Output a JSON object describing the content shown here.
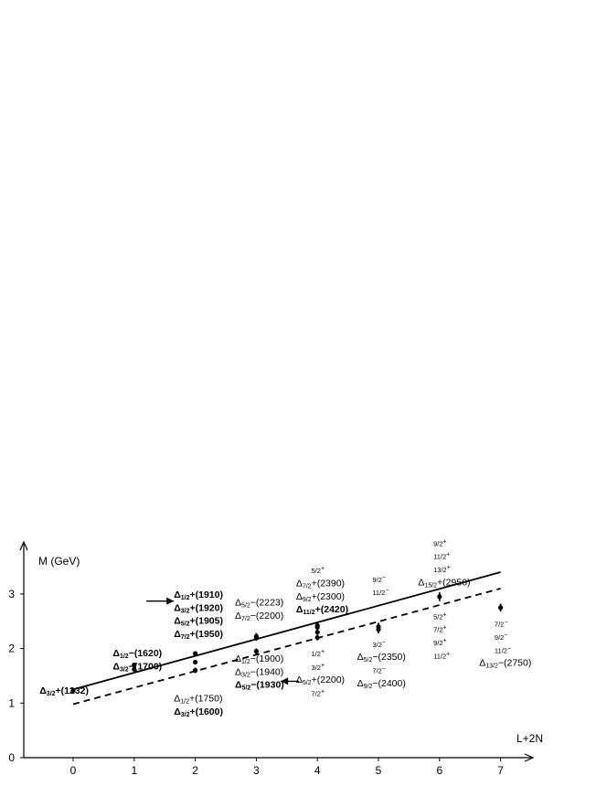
{
  "chart_data": {
    "type": "scatter",
    "xlabel": "L+2N",
    "ylabel": "M (GeV)",
    "xlim": [
      -0.8,
      7.6
    ],
    "ylim": [
      0,
      3.8
    ],
    "x_ticks": [
      "0",
      "1",
      "2",
      "3",
      "4",
      "5",
      "6",
      "7"
    ],
    "y_ticks": [
      "0",
      "1",
      "2",
      "3"
    ],
    "points": [
      {
        "x": 0,
        "y": 1.232,
        "err": 0
      },
      {
        "x": 1,
        "y": 1.62,
        "err": 0.02
      },
      {
        "x": 1,
        "y": 1.7,
        "err": 0.03
      },
      {
        "x": 2,
        "y": 1.6,
        "err": 0.05
      },
      {
        "x": 2,
        "y": 1.75,
        "err": 0.03
      },
      {
        "x": 2,
        "y": 1.91,
        "err": 0.03
      },
      {
        "x": 3,
        "y": 1.95,
        "err": 0.05
      },
      {
        "x": 3,
        "y": 2.2,
        "err": 0.06
      },
      {
        "x": 3,
        "y": 2.223,
        "err": 0.06
      },
      {
        "x": 4,
        "y": 2.2,
        "err": 0.05
      },
      {
        "x": 4,
        "y": 2.3,
        "err": 0.05
      },
      {
        "x": 4,
        "y": 2.39,
        "err": 0.05
      },
      {
        "x": 4,
        "y": 2.42,
        "err": 0.05
      },
      {
        "x": 5,
        "y": 2.35,
        "err": 0.07
      },
      {
        "x": 5,
        "y": 2.4,
        "err": 0.07
      },
      {
        "x": 6,
        "y": 2.95,
        "err": 0.08
      },
      {
        "x": 7,
        "y": 2.75,
        "err": 0.07
      }
    ],
    "lines": [
      {
        "style": "solid",
        "x": [
          0,
          7
        ],
        "y": [
          1.25,
          3.4
        ]
      },
      {
        "style": "dashed",
        "x": [
          0,
          7
        ],
        "y": [
          0.98,
          3.1
        ]
      }
    ],
    "arrows": [
      {
        "from": [
          1.2,
          2.87
        ],
        "to": [
          1.65,
          2.87
        ]
      },
      {
        "from": [
          3.7,
          1.4
        ],
        "to": [
          3.4,
          1.4
        ]
      }
    ],
    "annotations": [
      {
        "x": -0.55,
        "y": 1.17,
        "bold": true,
        "parts": [
          [
            "D",
            "Δ"
          ],
          [
            "s",
            "3/2"
          ],
          [
            "t",
            "+(1232)"
          ]
        ]
      },
      {
        "x": 0.65,
        "y": 1.86,
        "bold": true,
        "parts": [
          [
            "D",
            "Δ"
          ],
          [
            "s",
            "1/2"
          ],
          [
            "t",
            "−(1620)"
          ]
        ]
      },
      {
        "x": 0.65,
        "y": 1.62,
        "bold": true,
        "parts": [
          [
            "D",
            "Δ"
          ],
          [
            "s",
            "3/2"
          ],
          [
            "t",
            "−(1700)"
          ]
        ]
      },
      {
        "x": 1.65,
        "y": 2.93,
        "bold": true,
        "parts": [
          [
            "D",
            "Δ"
          ],
          [
            "s",
            "1/2"
          ],
          [
            "t",
            "+(1910)"
          ]
        ]
      },
      {
        "x": 1.65,
        "y": 2.69,
        "bold": true,
        "parts": [
          [
            "D",
            "Δ"
          ],
          [
            "s",
            "3/2"
          ],
          [
            "t",
            "+(1920)"
          ]
        ]
      },
      {
        "x": 1.65,
        "y": 2.45,
        "bold": true,
        "parts": [
          [
            "D",
            "Δ"
          ],
          [
            "s",
            "5/2"
          ],
          [
            "t",
            "+(1905)"
          ]
        ]
      },
      {
        "x": 1.65,
        "y": 2.21,
        "bold": true,
        "parts": [
          [
            "D",
            "Δ"
          ],
          [
            "s",
            "7/2"
          ],
          [
            "t",
            "+(1950)"
          ]
        ]
      },
      {
        "x": 1.65,
        "y": 1.03,
        "bold": false,
        "parts": [
          [
            "D",
            "Δ"
          ],
          [
            "s",
            "1/2"
          ],
          [
            "t",
            "+(1750)"
          ]
        ]
      },
      {
        "x": 1.65,
        "y": 0.79,
        "bold": true,
        "parts": [
          [
            "D",
            "Δ"
          ],
          [
            "s",
            "3/2"
          ],
          [
            "t",
            "+(1600)"
          ]
        ]
      },
      {
        "x": 2.65,
        "y": 2.79,
        "bold": false,
        "parts": [
          [
            "D",
            "Δ"
          ],
          [
            "s",
            "5/2"
          ],
          [
            "t",
            "−(2223)"
          ]
        ]
      },
      {
        "x": 2.65,
        "y": 2.55,
        "bold": false,
        "parts": [
          [
            "D",
            "Δ"
          ],
          [
            "s",
            "7/2"
          ],
          [
            "t",
            "−(2200)"
          ]
        ]
      },
      {
        "x": 2.65,
        "y": 1.76,
        "bold": false,
        "parts": [
          [
            "D",
            "Δ"
          ],
          [
            "s",
            "1/2"
          ],
          [
            "t",
            "−(1900)"
          ]
        ]
      },
      {
        "x": 2.65,
        "y": 1.52,
        "bold": false,
        "parts": [
          [
            "D",
            "Δ"
          ],
          [
            "s",
            "3/2"
          ],
          [
            "t",
            "−(1940)"
          ]
        ]
      },
      {
        "x": 2.65,
        "y": 1.28,
        "bold": true,
        "parts": [
          [
            "D",
            "Δ"
          ],
          [
            "s",
            "5/2"
          ],
          [
            "t",
            "−(1930)"
          ]
        ]
      },
      {
        "x": 3.9,
        "y": 3.38,
        "bold": false,
        "parts": [
          [
            "m",
            "5/2"
          ],
          [
            "u",
            "+"
          ]
        ]
      },
      {
        "x": 3.65,
        "y": 3.14,
        "bold": false,
        "parts": [
          [
            "D",
            "Δ"
          ],
          [
            "s",
            "7/2"
          ],
          [
            "t",
            "+(2390)"
          ]
        ]
      },
      {
        "x": 3.65,
        "y": 2.9,
        "bold": false,
        "parts": [
          [
            "D",
            "Δ"
          ],
          [
            "s",
            "9/2"
          ],
          [
            "t",
            "+(2300)"
          ]
        ]
      },
      {
        "x": 3.65,
        "y": 2.66,
        "bold": true,
        "parts": [
          [
            "D",
            "Δ"
          ],
          [
            "s",
            "11/2"
          ],
          [
            "t",
            "+(2420)"
          ]
        ]
      },
      {
        "x": 3.9,
        "y": 1.86,
        "bold": false,
        "parts": [
          [
            "m",
            "1/2"
          ],
          [
            "u",
            "+"
          ]
        ]
      },
      {
        "x": 3.9,
        "y": 1.61,
        "bold": false,
        "parts": [
          [
            "m",
            "3/2"
          ],
          [
            "u",
            "+"
          ]
        ]
      },
      {
        "x": 3.65,
        "y": 1.37,
        "bold": false,
        "parts": [
          [
            "D",
            "Δ"
          ],
          [
            "s",
            "5/2"
          ],
          [
            "t",
            "+(2200)"
          ]
        ]
      },
      {
        "x": 3.9,
        "y": 1.13,
        "bold": false,
        "parts": [
          [
            "m",
            "7/2"
          ],
          [
            "u",
            "+"
          ]
        ]
      },
      {
        "x": 4.9,
        "y": 3.22,
        "bold": false,
        "parts": [
          [
            "m",
            "9/2"
          ],
          [
            "u",
            "−"
          ]
        ]
      },
      {
        "x": 4.9,
        "y": 2.98,
        "bold": false,
        "parts": [
          [
            "m",
            "11/2"
          ],
          [
            "u",
            "−"
          ]
        ]
      },
      {
        "x": 4.9,
        "y": 2.03,
        "bold": false,
        "parts": [
          [
            "m",
            "3/2"
          ],
          [
            "u",
            "−"
          ]
        ]
      },
      {
        "x": 4.65,
        "y": 1.79,
        "bold": false,
        "parts": [
          [
            "D",
            "Δ"
          ],
          [
            "s",
            "5/2"
          ],
          [
            "t",
            "−(2350)"
          ]
        ]
      },
      {
        "x": 4.9,
        "y": 1.55,
        "bold": false,
        "parts": [
          [
            "m",
            "7/2"
          ],
          [
            "u",
            "−"
          ]
        ]
      },
      {
        "x": 4.65,
        "y": 1.31,
        "bold": false,
        "parts": [
          [
            "D",
            "Δ"
          ],
          [
            "s",
            "9/2"
          ],
          [
            "t",
            "−(2400)"
          ]
        ]
      },
      {
        "x": 5.9,
        "y": 3.88,
        "bold": false,
        "parts": [
          [
            "m",
            "9/2"
          ],
          [
            "u",
            "+"
          ]
        ]
      },
      {
        "x": 5.9,
        "y": 3.64,
        "bold": false,
        "parts": [
          [
            "m",
            "11/2"
          ],
          [
            "u",
            "+"
          ]
        ]
      },
      {
        "x": 5.9,
        "y": 3.4,
        "bold": false,
        "parts": [
          [
            "m",
            "13/2"
          ],
          [
            "u",
            "+"
          ]
        ]
      },
      {
        "x": 5.65,
        "y": 3.16,
        "bold": false,
        "parts": [
          [
            "D",
            "Δ"
          ],
          [
            "s",
            "15/2"
          ],
          [
            "t",
            "+(2950)"
          ]
        ]
      },
      {
        "x": 5.9,
        "y": 2.54,
        "bold": false,
        "parts": [
          [
            "m",
            "5/2"
          ],
          [
            "u",
            "+"
          ]
        ]
      },
      {
        "x": 5.9,
        "y": 2.3,
        "bold": false,
        "parts": [
          [
            "m",
            "7/2"
          ],
          [
            "u",
            "+"
          ]
        ]
      },
      {
        "x": 5.9,
        "y": 2.06,
        "bold": false,
        "parts": [
          [
            "m",
            "9/2"
          ],
          [
            "u",
            "+"
          ]
        ]
      },
      {
        "x": 5.9,
        "y": 1.82,
        "bold": false,
        "parts": [
          [
            "m",
            "11/2"
          ],
          [
            "u",
            "+"
          ]
        ]
      },
      {
        "x": 6.9,
        "y": 2.4,
        "bold": false,
        "parts": [
          [
            "m",
            "7/2"
          ],
          [
            "u",
            "−"
          ]
        ]
      },
      {
        "x": 6.9,
        "y": 2.16,
        "bold": false,
        "parts": [
          [
            "m",
            "9/2"
          ],
          [
            "u",
            "−"
          ]
        ]
      },
      {
        "x": 6.9,
        "y": 1.92,
        "bold": false,
        "parts": [
          [
            "m",
            "11/2"
          ],
          [
            "u",
            "−"
          ]
        ]
      },
      {
        "x": 6.65,
        "y": 1.68,
        "bold": false,
        "parts": [
          [
            "D",
            "Δ"
          ],
          [
            "s",
            "13/2"
          ],
          [
            "t",
            "−(2750)"
          ]
        ]
      }
    ]
  }
}
